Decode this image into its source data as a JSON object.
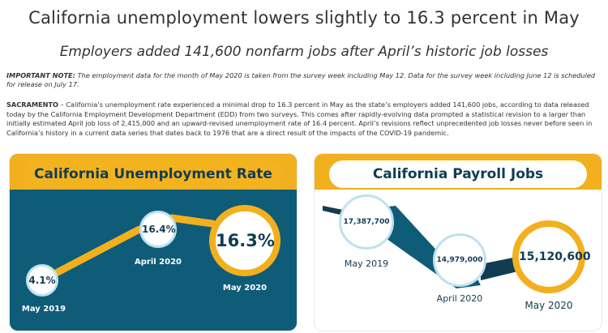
{
  "article": {
    "title": "California unemployment lowers slightly to 16.3 percent in May",
    "subtitle": "Employers added 141,600 nonfarm jobs after April’s historic job losses",
    "note_label": "IMPORTANT NOTE:",
    "note_text": " The employment data for the month of May 2020 is taken from the survey week including May 12. Data for the survey week including June 12 is scheduled for release on July 17.",
    "dateline": "SACRAMENTO",
    "body": " – California’s unemployment rate experienced a minimal drop to 16.3 percent in May as the state’s employers added 141,600 jobs, according to data released today by the California Employment Development Department (EDD) from two surveys. This comes after rapidly-evolving data prompted a statistical revision to a larger than initially estimated April job loss of 2,415,000 and an upward-revised unemployment rate of 16.4 percent. April’s revisions reflect unprecedented job losses never before seen in California’s history in a current data series that dates back to 1976 that are a direct result of the impacts of the COVID-19 pandemic."
  },
  "panels": {
    "unemployment": {
      "title": "California Unemployment Rate",
      "points": [
        {
          "value": "4.1%",
          "label": "May 2019"
        },
        {
          "value": "16.4%",
          "label": "April 2020"
        },
        {
          "value": "16.3%",
          "label": "May 2020"
        }
      ]
    },
    "payroll": {
      "title": "California Payroll Jobs",
      "points": [
        {
          "value": "17,387,700",
          "label": "May 2019"
        },
        {
          "value": "14,979,000",
          "label": "April 2020"
        },
        {
          "value": "15,120,600",
          "label": "May 2020"
        }
      ]
    }
  },
  "colors": {
    "navy": "#123c52",
    "teal": "#0e5c78",
    "gold": "#f2b01e",
    "light_blue": "#bfe1ef"
  }
}
